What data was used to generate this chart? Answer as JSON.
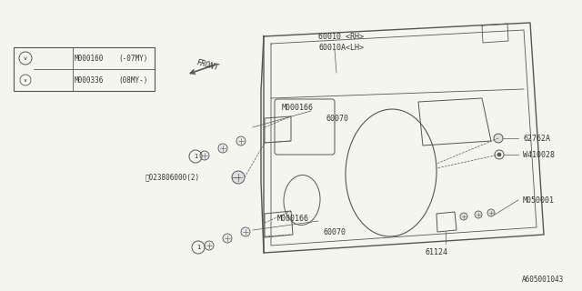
{
  "bg_color": "#f5f5f0",
  "line_color": "#555555",
  "text_color": "#333333",
  "footer": "A605001043",
  "legend_rows": [
    {
      "col1": "M000160",
      "col2": "(-07MY)"
    },
    {
      "col2b": "(08MY-)",
      "col1b": "M000336"
    }
  ]
}
